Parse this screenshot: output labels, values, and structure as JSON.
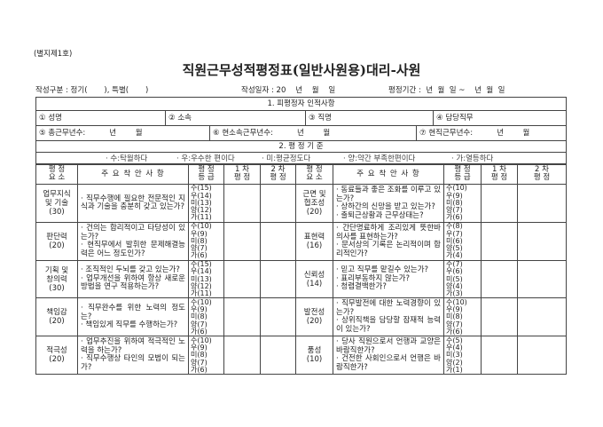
{
  "form_no": "(별지제1호)",
  "title": "직원근무성적평정표(일반사원용)대리-사원",
  "meta": {
    "type": "작성구분 : 정기(       ), 특별(       )",
    "date": "작성일자 : 20    년    월    일",
    "period": "평정기간 :  년  월  일 ~    년  월  일"
  },
  "section1": {
    "title": "1. 피평정자 인적사항",
    "name": "① 성명",
    "dept": "② 소속",
    "position": "③ 직명",
    "duty": "④ 담당직무",
    "total": "⑤ 총근무년수:          년        월",
    "current_dept": "⑥ 현소속근무년수:          년        월",
    "current_pos": "⑦ 현직근무년수:          년        월"
  },
  "section2": {
    "title": "2. 평 정 기 준",
    "criteria": [
      "· 수:탁월하다",
      "· 우:우수한 편이다",
      "· 미:평균정도다",
      "· 양:약간 부족한편이다",
      "· 가:열등하다"
    ]
  },
  "headers": {
    "element": "평 정\n요 소",
    "points": "주 요 착 안 사 항",
    "grade": "평 정\n등 급",
    "first": "1 차\n평 정",
    "second": "2 차\n평 정"
  },
  "rows": [
    {
      "left": {
        "element": "업무지식\n및 기술\n(30)",
        "points": "· 직무수행에 필요한 전문적인 지식과 기술을 충분히 갖고 있는가?",
        "grades": [
          "수(15)",
          "우(14)",
          "미(13)",
          "양(12)",
          "가(11)"
        ]
      },
      "right": {
        "element": "근면 및\n협조성\n(20)",
        "points": "· 동료들과 좋은 조화를 이루고 있는가?\n· 상하간의 신망을 받고 있는가?\n· 출퇴근상황과 근무상태는?",
        "grades": [
          "수(10)",
          "우(9)",
          "미(8)",
          "양(7)",
          "가(6)"
        ]
      }
    },
    {
      "left": {
        "element": "판단력\n(20)",
        "points": "· 건의는 합리적이고 타당성이 있는가?\n· 현직무에서 발휘한 문제해결능력은 어느 정도인가?",
        "grades": [
          "수(10)",
          "우(9)",
          "미(8)",
          "양(7)",
          "가(6)"
        ]
      },
      "right": {
        "element": "표현력\n(16)",
        "points": "· 간단명료하게 조리있게 뜻한바 의사를 표현하는가?\n· 문서상의 기록은 논리적이며 합리적인가?",
        "grades": [
          "수(8)",
          "우(7)",
          "미(6)",
          "양(5)",
          "가(4)"
        ]
      }
    },
    {
      "left": {
        "element": "기획 및\n창의력\n(30)",
        "points": "· 조직적인 두뇌를 갖고 있는가?\n· 업무개선을 위하여 항상 새로운 방법을 연구 적용하는가?",
        "grades": [
          "수(15)",
          "우(14)",
          "미(13)",
          "양(12)",
          "가(11)"
        ]
      },
      "right": {
        "element": "신뢰성\n(14)",
        "points": "· 믿고 직무를 맡길수 있는가?\n· 표리부동하지 않는가?\n· 청렴결백한가?",
        "grades": [
          "수(7)",
          "우(6)",
          "미(5)",
          "양(4)",
          "가(3)"
        ]
      }
    },
    {
      "left": {
        "element": "책임감\n(20)",
        "points": "· 직무완수를 위한 노력의 정도는?\n· 책임있게 직무를 수행하는가?",
        "grades": [
          "수(10)",
          "우(9)",
          "미(8)",
          "양(7)",
          "가(6)"
        ]
      },
      "right": {
        "element": "발전성\n(20)",
        "points": "· 직무발전에 대한 노력경향이 있는가?\n· 상위직책을 담당할 잠재적 능력이 있는가?",
        "grades": [
          "수(10)",
          "우(9)",
          "미(8)",
          "양(7)",
          "가(6)"
        ]
      }
    },
    {
      "left": {
        "element": "적극성\n(20)",
        "points": "· 업무추진을 위하여 적극적인 노력을 하는가?\n· 직무수행상 타인의 모범이 되는가?",
        "grades": [
          "수(10)",
          "우(9)",
          "미(8)",
          "양(7)",
          "가(6)"
        ]
      },
      "right": {
        "element": "품성\n(10)",
        "points": "· 당사 직원으로서 언행과 교양은 바람직한가?\n· 건전한 사회인으로서 언행은 바람직한가?",
        "grades": [
          "수(5)",
          "우(4)",
          "미(3)",
          "양(2)",
          "가(1)"
        ]
      }
    }
  ]
}
